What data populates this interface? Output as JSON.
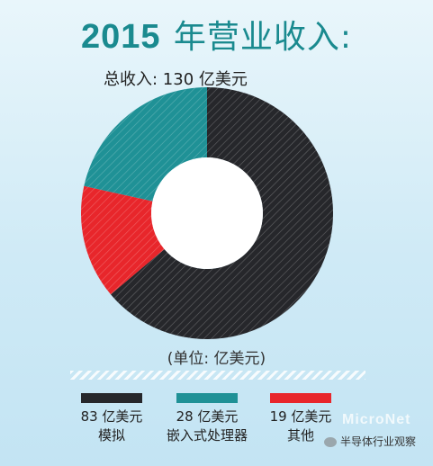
{
  "title_year": "2015",
  "title_rest": "年营业收入:",
  "subtitle": "总收入: 130 亿美元",
  "unit_note": "(单位: 亿美元)",
  "watermark": "MicroNet",
  "wechat_account": "半导体行业观察",
  "colors": {
    "teal": "#1f9196",
    "black": "#26272b",
    "red": "#e8262b",
    "hole": "#ffffff"
  },
  "chart_data": {
    "type": "pie",
    "variant": "donut",
    "title": "2015 年营业收入:",
    "subtitle": "总收入: 130 亿美元",
    "unit": "亿美元",
    "total": 130,
    "slices": [
      {
        "label": "模拟",
        "value_text": "83 亿美元",
        "value": 83,
        "color": "#26272b"
      },
      {
        "label": "其他",
        "value_text": "19 亿美元",
        "value": 19,
        "color": "#e8262b"
      },
      {
        "label": "嵌入式处理器",
        "value_text": "28 亿美元",
        "value": 28,
        "color": "#1f9196"
      }
    ],
    "legend": [
      {
        "value_text": "83 亿美元",
        "label": "模拟",
        "color": "#26272b"
      },
      {
        "value_text": "28 亿美元",
        "label": "嵌入式处理器",
        "color": "#1f9196"
      },
      {
        "value_text": "19 亿美元",
        "label": "其他",
        "color": "#e8262b"
      }
    ],
    "legend_position": "bottom"
  }
}
